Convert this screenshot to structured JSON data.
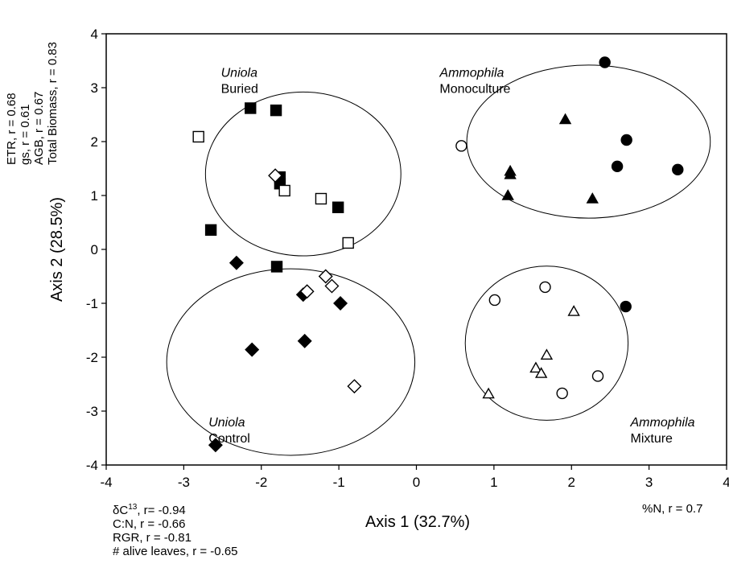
{
  "chart_data": {
    "type": "scatter",
    "title": "",
    "xlabel": "Axis 1 (32.7%)",
    "ylabel": "Axis 2 (28.5%)",
    "xlim": [
      -4,
      4
    ],
    "ylim": [
      -4,
      4
    ],
    "xticks": [
      -4,
      -3,
      -2,
      -1,
      0,
      1,
      2,
      3,
      4
    ],
    "yticks": [
      -4,
      -3,
      -2,
      -1,
      0,
      1,
      2,
      3,
      4
    ],
    "grid": false,
    "legend": "none",
    "series": [
      {
        "marker": "square-filled",
        "points": [
          [
            -2.14,
            2.62
          ],
          [
            -1.81,
            2.58
          ],
          [
            -1.76,
            1.34
          ],
          [
            -1.76,
            1.22
          ],
          [
            -1.01,
            0.78
          ],
          [
            -2.65,
            0.36
          ],
          [
            -1.8,
            -0.32
          ]
        ]
      },
      {
        "marker": "square-open",
        "points": [
          [
            -2.81,
            2.09
          ],
          [
            -1.7,
            1.09
          ],
          [
            -1.23,
            0.94
          ],
          [
            -0.88,
            0.12
          ]
        ]
      },
      {
        "marker": "diamond-filled",
        "points": [
          [
            -2.32,
            -0.25
          ],
          [
            -1.46,
            -0.84
          ],
          [
            -0.98,
            -1.0
          ],
          [
            -2.12,
            -1.86
          ],
          [
            -1.44,
            -1.7
          ],
          [
            -2.59,
            -3.63
          ]
        ]
      },
      {
        "marker": "diamond-open",
        "points": [
          [
            -1.82,
            1.37
          ],
          [
            -1.17,
            -0.5
          ],
          [
            -1.09,
            -0.68
          ],
          [
            -1.41,
            -0.78
          ],
          [
            -0.8,
            -2.54
          ]
        ]
      },
      {
        "marker": "circle-filled",
        "points": [
          [
            2.43,
            3.47
          ],
          [
            2.71,
            2.03
          ],
          [
            2.59,
            1.54
          ],
          [
            3.37,
            1.48
          ],
          [
            2.7,
            -1.06
          ]
        ]
      },
      {
        "marker": "circle-open",
        "points": [
          [
            0.58,
            1.92
          ],
          [
            1.01,
            -0.94
          ],
          [
            1.66,
            -0.7
          ],
          [
            2.34,
            -2.35
          ],
          [
            1.88,
            -2.67
          ]
        ]
      },
      {
        "marker": "triangle-filled",
        "points": [
          [
            1.92,
            2.41
          ],
          [
            1.21,
            1.45
          ],
          [
            1.21,
            1.39
          ],
          [
            1.18,
            1.0
          ],
          [
            2.27,
            0.94
          ]
        ]
      },
      {
        "marker": "triangle-open",
        "points": [
          [
            2.03,
            -1.15
          ],
          [
            1.68,
            -1.96
          ],
          [
            1.54,
            -2.2
          ],
          [
            1.61,
            -2.3
          ],
          [
            0.93,
            -2.68
          ]
        ]
      }
    ],
    "ellipses": [
      {
        "cx": -1.46,
        "cy": 1.4,
        "rx": 1.26,
        "ry": 1.52
      },
      {
        "cx": -1.62,
        "cy": -2.09,
        "rx": 1.6,
        "ry": 1.73
      },
      {
        "cx": 2.22,
        "cy": 2.0,
        "rx": 1.57,
        "ry": 1.42
      },
      {
        "cx": 1.68,
        "cy": -1.74,
        "rx": 1.05,
        "ry": 1.43
      }
    ],
    "group_labels": [
      {
        "italic": "Uniola",
        "plain": "Buried",
        "x": -2.52,
        "y": 3.2
      },
      {
        "italic": "Ammophila",
        "plain": "Monoculture",
        "x": 0.3,
        "y": 3.2
      },
      {
        "italic": "Uniola",
        "plain": "Control",
        "x": -2.68,
        "y": -3.28
      },
      {
        "italic": "Ammophila",
        "plain": "Mixture",
        "x": 2.76,
        "y": -3.28
      }
    ],
    "vector_labels": {
      "left_vertical": [
        "ETR, r = 0.68",
        "gs, r = 0.61",
        "AGB, r = 0.67",
        "Total Biomass, r = 0.83"
      ],
      "bottom_left": {
        "delta_symbol": "δC",
        "delta_sup": "13",
        "delta_rest": ", r= -0.94",
        "lines": [
          "C:N, r = -0.66",
          "RGR, r = -0.81",
          "# alive leaves, r = -0.65"
        ]
      },
      "bottom_right": "%N, r = 0.7"
    }
  }
}
